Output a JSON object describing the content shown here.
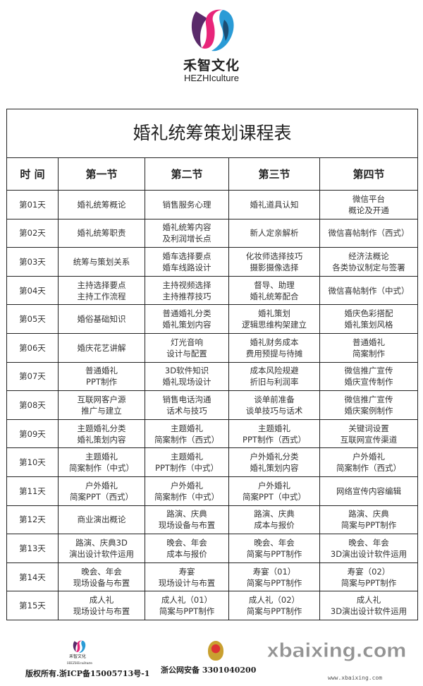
{
  "brand": {
    "name_cn": "禾智文化",
    "name_en": "HEZHIculture",
    "colors": {
      "magenta": "#e8257a",
      "blue": "#2a9bd6",
      "purple": "#5a2a6a"
    }
  },
  "table": {
    "title": "婚礼统筹策划课程表",
    "headers": [
      "时 间",
      "第一节",
      "第二节",
      "第三节",
      "第四节"
    ],
    "rows": [
      {
        "day": "第01天",
        "cells": [
          [
            "婚礼统筹概论"
          ],
          [
            "销售服务心理"
          ],
          [
            "婚礼道具认知"
          ],
          [
            "微信平台",
            "概论及开通"
          ]
        ]
      },
      {
        "day": "第02天",
        "cells": [
          [
            "婚礼统筹职责"
          ],
          [
            "婚礼统筹内容",
            "及利润增长点"
          ],
          [
            "新人定亲解析"
          ],
          [
            "微信喜帖制作（西式）"
          ]
        ]
      },
      {
        "day": "第03天",
        "cells": [
          [
            "统筹与策划关系"
          ],
          [
            "婚车选择要点",
            "婚车线路设计"
          ],
          [
            "化妆师选择技巧",
            "摄影摄像选择"
          ],
          [
            "经济法概论",
            "各类协议制定与签署"
          ]
        ]
      },
      {
        "day": "第04天",
        "cells": [
          [
            "主持选择要点",
            "主持工作流程"
          ],
          [
            "主持视频选择",
            "主持推荐技巧"
          ],
          [
            "督导、助理",
            "婚礼统筹配合"
          ],
          [
            "微信喜帖制作（中式）"
          ]
        ]
      },
      {
        "day": "第05天",
        "cells": [
          [
            "婚俗基础知识"
          ],
          [
            "普通婚礼分类",
            "婚礼策划内容"
          ],
          [
            "婚礼策划",
            "逻辑思维构架建立"
          ],
          [
            "婚庆色彩搭配",
            "婚礼策划风格"
          ]
        ]
      },
      {
        "day": "第06天",
        "cells": [
          [
            "婚庆花艺讲解"
          ],
          [
            "灯光音响",
            "设计与配置"
          ],
          [
            "婚礼财务成本",
            "费用预提与待摊"
          ],
          [
            "普通婚礼",
            "简案制作"
          ]
        ]
      },
      {
        "day": "第07天",
        "cells": [
          [
            "普通婚礼",
            "PPT制作"
          ],
          [
            "3D软件知识",
            "婚礼现场设计"
          ],
          [
            "成本风险规避",
            "折旧与利润率"
          ],
          [
            "微信推广宣传",
            "婚庆宣传制作"
          ]
        ]
      },
      {
        "day": "第08天",
        "cells": [
          [
            "互联网客户源",
            "推广与建立"
          ],
          [
            "销售电话沟通",
            "话术与技巧"
          ],
          [
            "谈单前准备",
            "谈单技巧与话术"
          ],
          [
            "微信推广宣传",
            "婚庆案例制作"
          ]
        ]
      },
      {
        "day": "第09天",
        "cells": [
          [
            "主题婚礼分类",
            "婚礼策划内容"
          ],
          [
            "主题婚礼",
            "简案制作（西式）"
          ],
          [
            "主题婚礼",
            "PPT制作（西式）"
          ],
          [
            "关键词设置",
            "互联网宣传渠道"
          ]
        ]
      },
      {
        "day": "第10天",
        "cells": [
          [
            "主题婚礼",
            "简案制作（中式）"
          ],
          [
            "主题婚礼",
            "PPT制作（中式）"
          ],
          [
            "户外婚礼分类",
            "婚礼策划内容"
          ],
          [
            "户外婚礼",
            "简案制作（西式）"
          ]
        ]
      },
      {
        "day": "第11天",
        "cells": [
          [
            "户外婚礼",
            "简案PPT（西式）"
          ],
          [
            "户外婚礼",
            "简案制作（中式）"
          ],
          [
            "户外婚礼",
            "简案PPT（中式）"
          ],
          [
            "网络宣传内容编辑"
          ]
        ]
      },
      {
        "day": "第12天",
        "cells": [
          [
            "商业演出概论"
          ],
          [
            "路演、庆典",
            "现场设备与布置"
          ],
          [
            "路演、庆典",
            "成本与报价"
          ],
          [
            "路演、庆典",
            "简案与PPT制作"
          ]
        ]
      },
      {
        "day": "第13天",
        "cells": [
          [
            "路演、庆典3D",
            "演出设计软件运用"
          ],
          [
            "晚会、年会",
            "成本与报价"
          ],
          [
            "晚会、年会",
            "简案与PPT制作"
          ],
          [
            "晚会、年会",
            "3D演出设计软件运用"
          ]
        ]
      },
      {
        "day": "第14天",
        "cells": [
          [
            "晚会、年会",
            "现场设备与布置"
          ],
          [
            "寿宴",
            "现场设计与布置"
          ],
          [
            "寿宴（01）",
            "简案与PPT制作"
          ],
          [
            "寿宴（02）",
            "简案与PPT制作"
          ]
        ]
      },
      {
        "day": "第15天",
        "cells": [
          [
            "成人礼",
            "现场设计与布置"
          ],
          [
            "成人礼（01）",
            "简案与PPT制作"
          ],
          [
            "成人礼（02）",
            "简案与PPT制作"
          ],
          [
            "成人礼",
            "3D演出设计软件运用"
          ]
        ]
      }
    ]
  },
  "footer": {
    "logo_cn": "禾智文化",
    "logo_en": "HEZHIculture",
    "copyright": "版权所有.浙ICP备15005713号-1",
    "police": "浙公网安备 3301040200",
    "watermark": "xbaixing.com",
    "watermark_url": "www.xbaixing.com"
  }
}
